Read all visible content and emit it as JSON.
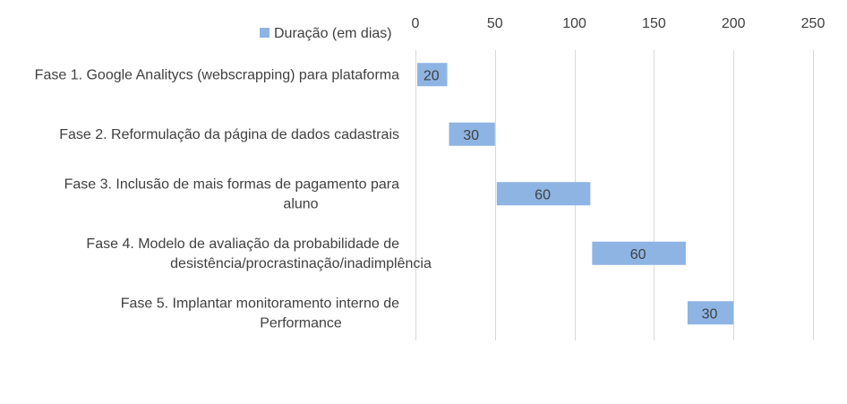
{
  "chart_data": {
    "type": "bar",
    "orientation": "horizontal",
    "stacked": true,
    "categories": [
      [
        "Fase 1. Google Analitycs (webscrapping) para plataforma"
      ],
      [
        "Fase 2. Reformulação da página de dados cadastrais"
      ],
      [
        "Fase 3. Inclusão de mais formas de pagamento para",
        "aluno"
      ],
      [
        "Fase 4. Modelo de avaliação da probabilidade de",
        "desistência/procrastinação/inadimplência"
      ],
      [
        "Fase 5. Implantar monitoramento interno de",
        "Performance"
      ]
    ],
    "series": [
      {
        "values": [
          0,
          20,
          50,
          110,
          170
        ],
        "hidden": true
      },
      {
        "name": "Duração (em dias)",
        "values": [
          20,
          30,
          60,
          60,
          30
        ],
        "color": "#8eb4e3",
        "data_labels": true
      }
    ],
    "xlim": [
      0,
      250
    ],
    "xticks": [
      0,
      50,
      100,
      150,
      200,
      250
    ],
    "xaxis_position": "top",
    "grid": true,
    "legend": "top-left",
    "title": "",
    "xlabel": "",
    "ylabel": ""
  }
}
